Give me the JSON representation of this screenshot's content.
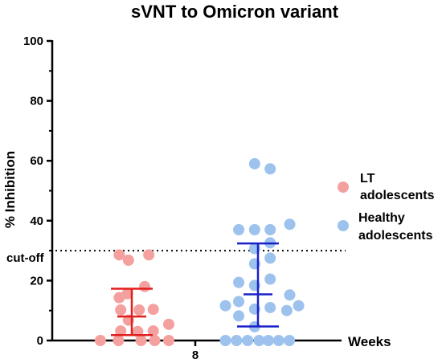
{
  "chart_data": {
    "type": "scatter",
    "title": "sVNT to  Omicron variant",
    "ylabel": "% Inhibition",
    "xlabel": "Weeks",
    "x_tick_labels": [
      "8"
    ],
    "ylim": [
      0,
      100
    ],
    "y_ticks": [
      0,
      20,
      40,
      60,
      80,
      100
    ],
    "cutoff": {
      "label": "cut-off",
      "value": 30,
      "style": "dotted"
    },
    "legend_placement": "right",
    "series": [
      {
        "name": "LT adolescents",
        "legend_lines": [
          "LT",
          "adolescents"
        ],
        "color": "#F4A09F",
        "errorbar_color": "#E0201F",
        "mean": 8.0,
        "sd_low": 1.8,
        "sd_high": 17.3,
        "points": [
          {
            "x": -0.85,
            "y": 0
          },
          {
            "x": -0.36,
            "y": 0
          },
          {
            "x": 0.25,
            "y": 0
          },
          {
            "x": 0.62,
            "y": 0
          },
          {
            "x": 1.0,
            "y": 0
          },
          {
            "x": -0.3,
            "y": 3.2
          },
          {
            "x": 0.16,
            "y": 3.0
          },
          {
            "x": 0.58,
            "y": 3.2
          },
          {
            "x": 1.0,
            "y": 5.4
          },
          {
            "x": -0.09,
            "y": 6.8
          },
          {
            "x": -0.3,
            "y": 10.2
          },
          {
            "x": 0.2,
            "y": 10.2
          },
          {
            "x": 0.58,
            "y": 10.4
          },
          {
            "x": -0.34,
            "y": 14.3
          },
          {
            "x": -0.12,
            "y": 15.6
          },
          {
            "x": 0.35,
            "y": 18.0
          },
          {
            "x": -0.09,
            "y": 26.8
          },
          {
            "x": -0.34,
            "y": 28.6
          },
          {
            "x": 0.46,
            "y": 28.6
          }
        ]
      },
      {
        "name": "Healthy adolescents",
        "legend_lines": [
          "Healthy",
          "adolescents"
        ],
        "color": "#9CC2ED",
        "errorbar_color": "#1A20C8",
        "mean": 15.4,
        "sd_low": 4.7,
        "sd_high": 32.4,
        "points": [
          {
            "x": -0.88,
            "y": 0
          },
          {
            "x": -0.58,
            "y": 0
          },
          {
            "x": -0.28,
            "y": 0
          },
          {
            "x": 0.03,
            "y": 0
          },
          {
            "x": 0.28,
            "y": 0
          },
          {
            "x": 0.56,
            "y": 0
          },
          {
            "x": 0.85,
            "y": 0
          },
          {
            "x": -0.09,
            "y": 4.6
          },
          {
            "x": -0.52,
            "y": 8.2
          },
          {
            "x": -0.88,
            "y": 11.6
          },
          {
            "x": -0.52,
            "y": 13.0
          },
          {
            "x": 1.1,
            "y": 11.6
          },
          {
            "x": -0.09,
            "y": 10.5
          },
          {
            "x": 0.33,
            "y": 11.0
          },
          {
            "x": 0.78,
            "y": 10.0
          },
          {
            "x": 0.86,
            "y": 15.2
          },
          {
            "x": -0.52,
            "y": 19.4
          },
          {
            "x": -0.09,
            "y": 18.4
          },
          {
            "x": 0.33,
            "y": 20.5
          },
          {
            "x": -0.09,
            "y": 25.6
          },
          {
            "x": 0.33,
            "y": 27.5
          },
          {
            "x": -0.09,
            "y": 30.7
          },
          {
            "x": 0.33,
            "y": 32.6
          },
          {
            "x": -0.52,
            "y": 37.0
          },
          {
            "x": -0.09,
            "y": 37.0
          },
          {
            "x": 0.33,
            "y": 37.0
          },
          {
            "x": 0.86,
            "y": 38.8
          },
          {
            "x": -0.09,
            "y": 59.0
          },
          {
            "x": 0.33,
            "y": 57.3
          }
        ]
      }
    ]
  }
}
